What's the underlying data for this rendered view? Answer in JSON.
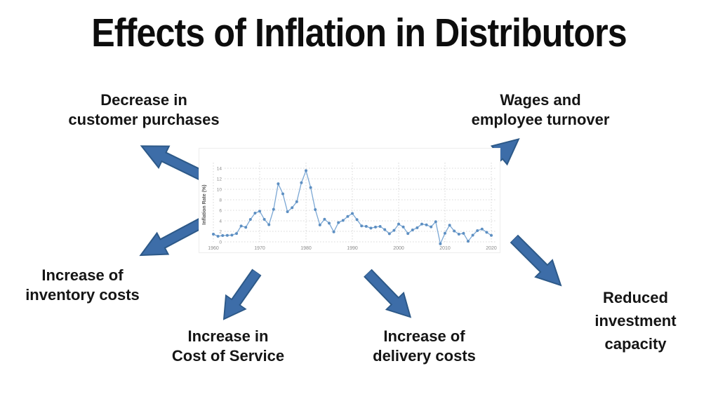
{
  "title": "Effects of Inflation in Distributors",
  "effects": [
    {
      "name": "decrease-customer-purchases",
      "lines": [
        "Decrease in",
        "customer purchases"
      ]
    },
    {
      "name": "wages-employee-turnover",
      "lines": [
        "Wages and",
        "employee turnover"
      ]
    },
    {
      "name": "increase-inventory-costs",
      "lines": [
        "Increase of",
        "inventory costs"
      ]
    },
    {
      "name": "increase-cost-of-service",
      "lines": [
        "Increase in",
        "Cost of Service"
      ]
    },
    {
      "name": "increase-delivery-costs",
      "lines": [
        "Increase of",
        "delivery costs"
      ]
    },
    {
      "name": "reduced-investment-capacity",
      "lines": [
        "Reduced",
        "investment",
        "capacity"
      ]
    }
  ],
  "arrows": [
    {
      "name": "arrow-to-customer-purchases",
      "direction": "up-left"
    },
    {
      "name": "arrow-to-wages-turnover",
      "direction": "up-right"
    },
    {
      "name": "arrow-to-inventory-costs",
      "direction": "down-left"
    },
    {
      "name": "arrow-to-cost-of-service",
      "direction": "down-left"
    },
    {
      "name": "arrow-to-delivery-costs",
      "direction": "down-right"
    },
    {
      "name": "arrow-to-investment-capacity",
      "direction": "down-right"
    }
  ],
  "colors": {
    "title_text": "#0d0d0d",
    "label_text": "#151515",
    "arrow_fill": "#3d6da8",
    "arrow_stroke": "#2d5988",
    "chart_line": "#7ba7d4",
    "chart_marker": "#5d8fc2",
    "chart_grid": "#cccccc",
    "chart_tick_text": "#8a8a8a",
    "background": "#ffffff"
  },
  "chart_data": {
    "type": "line",
    "title": "",
    "xlabel": "",
    "ylabel": "Inflation Rate (%)",
    "x_start": 1960,
    "x_step": 1,
    "x_end": 2020,
    "values": [
      1.46,
      1.07,
      1.2,
      1.24,
      1.28,
      1.59,
      3.02,
      2.77,
      4.27,
      5.46,
      5.84,
      4.29,
      3.27,
      6.18,
      11.05,
      9.14,
      5.74,
      6.5,
      7.63,
      11.25,
      13.55,
      10.33,
      6.13,
      3.21,
      4.3,
      3.55,
      1.9,
      3.66,
      4.08,
      4.83,
      5.4,
      4.23,
      3.03,
      2.95,
      2.61,
      2.81,
      2.93,
      2.34,
      1.55,
      2.19,
      3.38,
      2.83,
      1.59,
      2.27,
      2.68,
      3.39,
      3.23,
      2.85,
      3.84,
      -0.36,
      1.64,
      3.16,
      2.07,
      1.46,
      1.62,
      0.12,
      1.26,
      2.13,
      2.44,
      1.81,
      1.23
    ],
    "xticks": [
      1960,
      1970,
      1980,
      1990,
      2000,
      2010,
      2020
    ],
    "yticks": [
      0,
      2,
      4,
      6,
      8,
      10,
      12,
      14
    ],
    "ylim": [
      0,
      14
    ],
    "grid": "dotted",
    "legend": "none",
    "marker": "circle"
  }
}
